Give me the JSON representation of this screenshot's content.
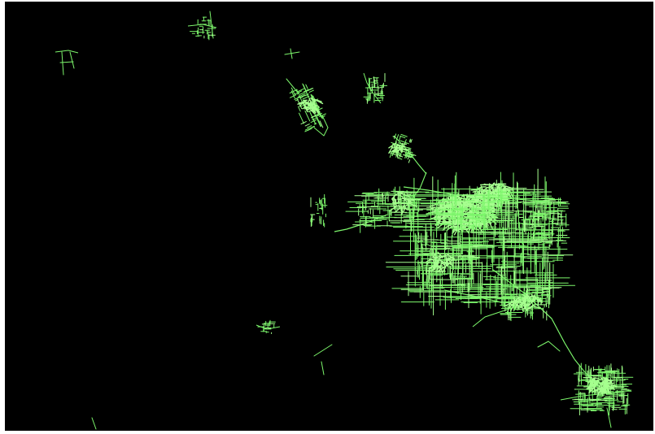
{
  "map": {
    "background_color": "#000000",
    "frame_color": "#ffffff",
    "network_color": "#7cf56b",
    "network_highlight_color": "#a6ff8f",
    "content": "road-network"
  }
}
